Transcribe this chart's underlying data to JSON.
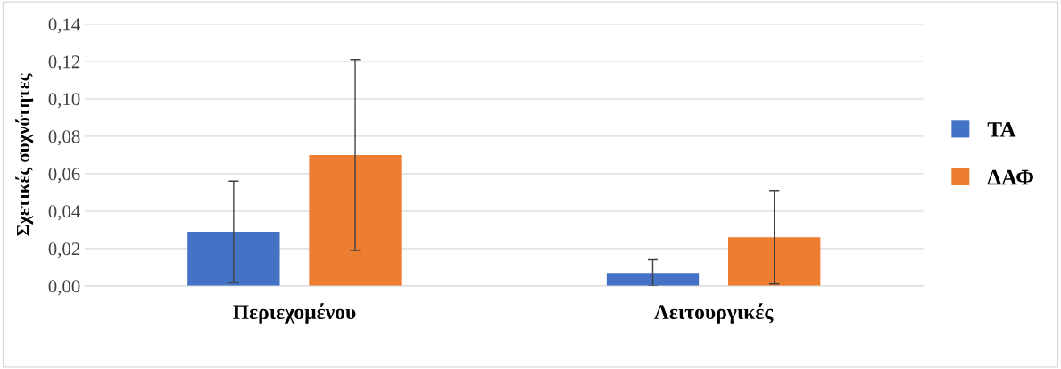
{
  "chart_data": {
    "type": "bar",
    "ylabel": "Σχετικές συχνότητες",
    "categories": [
      "Περιεχομένου",
      "Λειτουργικές"
    ],
    "series": [
      {
        "name": "ΤΑ",
        "color": "#4472c4",
        "values": [
          0.029,
          0.007
        ],
        "errors": [
          0.027,
          0.007
        ]
      },
      {
        "name": "ΔΑΦ",
        "color": "#ed7d31",
        "values": [
          0.07,
          0.026
        ],
        "errors": [
          0.051,
          0.025
        ]
      }
    ],
    "ylim": [
      0,
      0.14
    ],
    "yticks": [
      {
        "value": 0,
        "label": "0,00"
      },
      {
        "value": 0.02,
        "label": "0,02"
      },
      {
        "value": 0.04,
        "label": "0,04"
      },
      {
        "value": 0.06,
        "label": "0,06"
      },
      {
        "value": 0.08,
        "label": "0,08"
      },
      {
        "value": 0.1,
        "label": "0,10"
      },
      {
        "value": 0.12,
        "label": "0,12"
      },
      {
        "value": 0.14,
        "label": "0,14"
      }
    ],
    "grid": "y",
    "legend": "right"
  }
}
